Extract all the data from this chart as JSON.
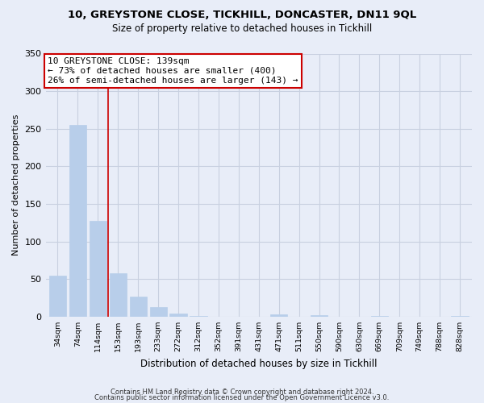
{
  "title": "10, GREYSTONE CLOSE, TICKHILL, DONCASTER, DN11 9QL",
  "subtitle": "Size of property relative to detached houses in Tickhill",
  "xlabel": "Distribution of detached houses by size in Tickhill",
  "ylabel": "Number of detached properties",
  "bar_labels": [
    "34sqm",
    "74sqm",
    "114sqm",
    "153sqm",
    "193sqm",
    "233sqm",
    "272sqm",
    "312sqm",
    "352sqm",
    "391sqm",
    "431sqm",
    "471sqm",
    "511sqm",
    "550sqm",
    "590sqm",
    "630sqm",
    "669sqm",
    "709sqm",
    "749sqm",
    "788sqm",
    "828sqm"
  ],
  "bar_values": [
    55,
    255,
    127,
    58,
    27,
    13,
    4,
    1,
    0,
    0,
    0,
    3,
    0,
    2,
    0,
    0,
    1,
    0,
    0,
    0,
    1
  ],
  "bar_color": "#b8ceea",
  "property_line_x": 2.5,
  "annotation_line1": "10 GREYSTONE CLOSE: 139sqm",
  "annotation_line2": "← 73% of detached houses are smaller (400)",
  "annotation_line3": "26% of semi-detached houses are larger (143) →",
  "annotation_box_color": "#ffffff",
  "annotation_border_color": "#cc0000",
  "vline_color": "#cc0000",
  "ylim": [
    0,
    350
  ],
  "yticks": [
    0,
    50,
    100,
    150,
    200,
    250,
    300,
    350
  ],
  "footer_line1": "Contains HM Land Registry data © Crown copyright and database right 2024.",
  "footer_line2": "Contains public sector information licensed under the Open Government Licence v3.0.",
  "bg_color": "#e8edf8",
  "grid_color": "#c8d0e0",
  "title_fontsize": 9.5,
  "subtitle_fontsize": 8.5,
  "annotation_fontsize": 8.0
}
